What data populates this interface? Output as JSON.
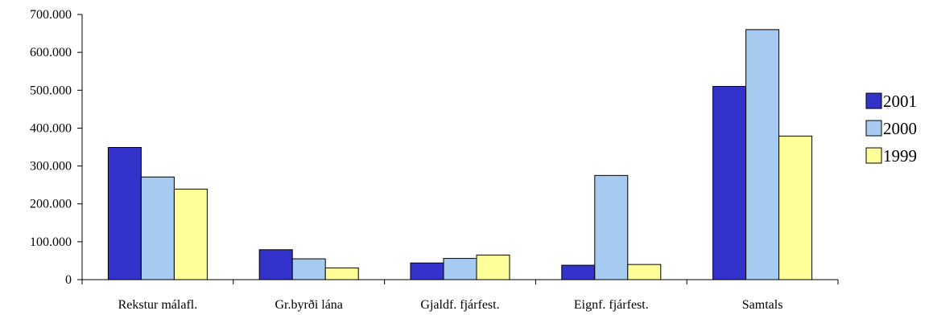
{
  "chart_data": {
    "type": "bar",
    "categories": [
      "Rekstur málafl.",
      "Gr.byrði lána",
      "Gjaldf. fjárfest.",
      "Eignf. fjárfest.",
      "Samtals"
    ],
    "series": [
      {
        "name": "2001",
        "color": "#3333cc",
        "values": [
          349000,
          79000,
          44000,
          38000,
          510000
        ]
      },
      {
        "name": "2000",
        "color": "#a6caf0",
        "values": [
          271000,
          55000,
          56000,
          275000,
          660000
        ]
      },
      {
        "name": "1999",
        "color": "#ffff99",
        "values": [
          239000,
          31000,
          65000,
          40000,
          379000
        ]
      }
    ],
    "y_ticks": [
      "0",
      "100.000",
      "200.000",
      "300.000",
      "400.000",
      "500.000",
      "600.000",
      "700.000"
    ],
    "ylim": [
      0,
      700000
    ],
    "y_step": 100000,
    "grid": false,
    "legend_position": "right"
  }
}
